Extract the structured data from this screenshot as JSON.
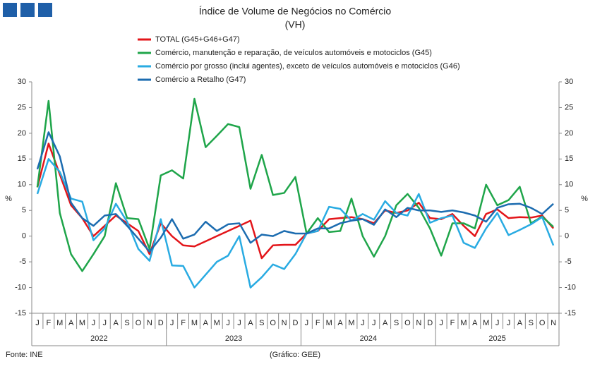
{
  "chart_data": {
    "type": "line",
    "title": "Índice de Volume de Negócios no Comércio",
    "subtitle": "(VH)",
    "y_label": "%",
    "y2_label": "%",
    "source": "Fonte: INE",
    "credit": "(Gráfico: GEE)",
    "categories": [
      "J",
      "F",
      "M",
      "A",
      "M",
      "J",
      "J",
      "A",
      "S",
      "O",
      "N",
      "D",
      "J",
      "F",
      "M",
      "A",
      "M",
      "J",
      "J",
      "A",
      "S",
      "O",
      "N",
      "D",
      "J",
      "F",
      "M",
      "A",
      "M",
      "J",
      "J",
      "A",
      "S",
      "O",
      "N",
      "D",
      "J",
      "F",
      "M",
      "A",
      "M",
      "J",
      "J",
      "A",
      "S",
      "O",
      "N"
    ],
    "x_groups": [
      {
        "label": "2022",
        "size": 12
      },
      {
        "label": "2023",
        "size": 12
      },
      {
        "label": "2024",
        "size": 12
      },
      {
        "label": "2025",
        "size": 11
      }
    ],
    "ylim": [
      -15,
      30
    ],
    "yticks": [
      -15,
      -10,
      -5,
      0,
      5,
      10,
      15,
      20,
      25,
      30
    ],
    "y2lim": [
      -15,
      30
    ],
    "y2ticks": [
      -15,
      -10,
      -5,
      0,
      5,
      10,
      15,
      20,
      25,
      30
    ],
    "grid": false,
    "series": [
      {
        "name": "TOTAL (G45+G46+G47)",
        "color": "#e3151a",
        "values": [
          9.5,
          18,
          12,
          6,
          3.5,
          0,
          2,
          4,
          2.5,
          1,
          -3.5,
          2.5,
          0,
          -1.8,
          -2,
          -1,
          0,
          1,
          2,
          3,
          -4.3,
          -1.8,
          -1.7,
          -1.7,
          0.5,
          1,
          3.3,
          3.5,
          3.7,
          3.3,
          2.5,
          5,
          4.5,
          5,
          6.5,
          3.5,
          3.3,
          4.3,
          2,
          0,
          4.3,
          5.2,
          3.5,
          3.7,
          3.6,
          4,
          1.5
        ]
      },
      {
        "name": "Comércio, manutenção e reparação, de veículos automóveis e motociclos (G45)",
        "color": "#1fa54a",
        "values": [
          9.5,
          26.3,
          4.5,
          -3.5,
          -6.8,
          -3.5,
          0,
          10.3,
          3.5,
          3.3,
          -2.5,
          11.8,
          12.8,
          11.2,
          26.7,
          17.3,
          19.5,
          21.8,
          21.2,
          9.2,
          15.8,
          8,
          8.4,
          11.5,
          0.5,
          3.5,
          0.8,
          1,
          7.3,
          0,
          -4,
          0,
          6,
          8.2,
          5.5,
          1.5,
          -3.8,
          2.5,
          2.5,
          1.5,
          10,
          6,
          7,
          9.6,
          2.5,
          3.8,
          1.8
        ]
      },
      {
        "name": "Comércio por grosso (inclui agentes), exceto de veículos automóveis e motociclos (G46)",
        "color": "#29abe2",
        "values": [
          8.2,
          15,
          12.5,
          7.3,
          6.7,
          -0.8,
          1.5,
          6.3,
          2.8,
          -2.5,
          -4.8,
          3.3,
          -5.7,
          -5.8,
          -10,
          -7.5,
          -5,
          -3.8,
          0,
          -10,
          -8,
          -5.5,
          -6.4,
          -3.5,
          0.5,
          1,
          5.7,
          5.3,
          3,
          4.3,
          3.2,
          6.8,
          4.5,
          4,
          8.2,
          2.6,
          3.5,
          4,
          -1.3,
          -2.3,
          1.5,
          4.5,
          0.2,
          1.2,
          2.3,
          3.7,
          -1.8
        ]
      },
      {
        "name": "Comércio a Retalho (G47)",
        "color": "#1c6cb0",
        "values": [
          13,
          20.2,
          15.5,
          6.5,
          3.5,
          2,
          4,
          4.3,
          2,
          -0.5,
          -3,
          -0.3,
          3.3,
          -0.5,
          0.3,
          2.8,
          1,
          2.3,
          2.5,
          -1.3,
          0.3,
          0,
          1,
          0.5,
          0.5,
          1.5,
          1.5,
          2.5,
          3,
          3.3,
          2.2,
          5.2,
          3.7,
          5.5,
          5,
          5,
          4.7,
          5,
          4.6,
          4,
          2.8,
          5.5,
          6.2,
          6.3,
          5.5,
          4.3,
          6.3
        ]
      }
    ]
  }
}
